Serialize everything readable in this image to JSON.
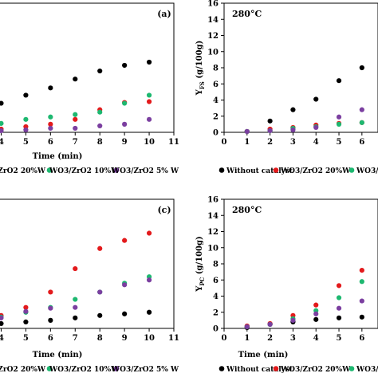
{
  "chart_data": [
    {
      "type": "scatter",
      "panel_label": "(a)",
      "title": "",
      "xlabel": "Time (min)",
      "ylabel": "",
      "xlim": [
        3.5,
        11
      ],
      "ylim": [
        0,
        16
      ],
      "xticks": [
        "4",
        "5",
        "6",
        "7",
        "8",
        "9",
        "10",
        "11"
      ],
      "grid": false,
      "legend": [
        "/ZrO2 20%W",
        "WO3/ZrO2 10%W",
        "WO3/ZrO2 5% W"
      ],
      "series": [
        {
          "color": "#000000",
          "x": [
            4,
            5,
            6,
            7,
            8,
            9,
            10
          ],
          "y": [
            3.6,
            4.6,
            5.5,
            6.6,
            7.6,
            8.3,
            8.7
          ]
        },
        {
          "color": "#e31a1c",
          "x": [
            4,
            5,
            6,
            7,
            8,
            9,
            10
          ],
          "y": [
            0.4,
            0.7,
            1.0,
            1.6,
            2.8,
            3.7,
            3.8
          ]
        },
        {
          "color": "#1db870",
          "x": [
            4,
            5,
            6,
            7,
            8,
            9,
            10
          ],
          "y": [
            1.1,
            1.6,
            1.9,
            2.2,
            2.5,
            3.6,
            4.6
          ]
        },
        {
          "color": "#7b3fa0",
          "x": [
            4,
            5,
            6,
            7,
            8,
            9,
            10
          ],
          "y": [
            0.2,
            0.3,
            0.5,
            0.5,
            0.8,
            1.0,
            1.6
          ]
        }
      ]
    },
    {
      "type": "scatter",
      "panel_label": "",
      "title": "280°C",
      "xlabel": "",
      "ylabel": "Y_FS (g/100g)",
      "xlim": [
        0,
        6.7
      ],
      "ylim": [
        0,
        16
      ],
      "xticks": [
        "0",
        "1",
        "2",
        "3",
        "4",
        "5",
        "6"
      ],
      "yticks": [
        "0",
        "2",
        "4",
        "6",
        "8",
        "10",
        "12",
        "14",
        "16"
      ],
      "grid": false,
      "legend": [
        "Without catalyst",
        "WO3/ZrO2 20%W",
        "WO3/ZrO"
      ],
      "series": [
        {
          "color": "#000000",
          "x": [
            1,
            2,
            3,
            4,
            5,
            6
          ],
          "y": [
            0.1,
            1.4,
            2.8,
            4.1,
            6.4,
            8.0
          ]
        },
        {
          "color": "#e31a1c",
          "x": [
            1,
            2,
            3,
            4,
            5,
            6
          ],
          "y": [
            0.1,
            0.4,
            0.6,
            0.9,
            1.1,
            1.2
          ]
        },
        {
          "color": "#1db870",
          "x": [
            1,
            2,
            3,
            4,
            5,
            6
          ],
          "y": [
            0.1,
            0.2,
            0.5,
            0.7,
            1.0,
            1.2
          ]
        },
        {
          "color": "#7b3fa0",
          "x": [
            1,
            2,
            3,
            4,
            5,
            6
          ],
          "y": [
            0.1,
            0.2,
            0.3,
            0.6,
            1.9,
            2.8
          ]
        }
      ]
    },
    {
      "type": "scatter",
      "panel_label": "(c)",
      "title": "",
      "xlabel": "Time (min)",
      "ylabel": "",
      "xlim": [
        3.5,
        11
      ],
      "ylim": [
        0,
        16
      ],
      "xticks": [
        "4",
        "5",
        "6",
        "7",
        "8",
        "9",
        "10",
        "11"
      ],
      "grid": false,
      "legend": [
        "/ZrO2 20%W",
        "WO3/ZrO2 10%W",
        "WO3/ZrO2 5% W"
      ],
      "series": [
        {
          "color": "#000000",
          "x": [
            4,
            5,
            6,
            7,
            8,
            9,
            10
          ],
          "y": [
            0.6,
            0.8,
            1.0,
            1.3,
            1.6,
            1.8,
            2.0
          ]
        },
        {
          "color": "#e31a1c",
          "x": [
            4,
            5,
            6,
            7,
            8,
            9,
            10
          ],
          "y": [
            1.6,
            2.6,
            4.5,
            7.4,
            9.9,
            10.9,
            11.8
          ]
        },
        {
          "color": "#1db870",
          "x": [
            4,
            5,
            6,
            7,
            8,
            9,
            10
          ],
          "y": [
            1.4,
            2.0,
            2.6,
            3.6,
            4.5,
            5.6,
            6.4
          ]
        },
        {
          "color": "#7b3fa0",
          "x": [
            4,
            5,
            6,
            7,
            8,
            9,
            10
          ],
          "y": [
            1.3,
            2.1,
            2.5,
            2.6,
            4.5,
            5.4,
            6.0
          ]
        }
      ]
    },
    {
      "type": "scatter",
      "panel_label": "",
      "title": "280°C",
      "xlabel": "Time (min)",
      "ylabel": "Y_PC (g/100g)",
      "xlim": [
        0,
        6.7
      ],
      "ylim": [
        0,
        16
      ],
      "xticks": [
        "0",
        "1",
        "2",
        "3",
        "4",
        "5",
        "6"
      ],
      "yticks": [
        "0",
        "2",
        "4",
        "6",
        "8",
        "10",
        "12",
        "14",
        "16"
      ],
      "grid": false,
      "legend": [
        "Without catalyst",
        "WO3/ZrO2 20%W",
        "WO3/ZrO"
      ],
      "series": [
        {
          "color": "#000000",
          "x": [
            1,
            2,
            3,
            4,
            5,
            6
          ],
          "y": [
            0.1,
            0.5,
            0.8,
            1.1,
            1.3,
            1.4
          ]
        },
        {
          "color": "#e31a1c",
          "x": [
            1,
            2,
            3,
            4,
            5,
            6
          ],
          "y": [
            0.3,
            0.6,
            1.6,
            2.9,
            5.3,
            7.2
          ]
        },
        {
          "color": "#1db870",
          "x": [
            1,
            2,
            3,
            4,
            5,
            6
          ],
          "y": [
            0.2,
            0.5,
            1.2,
            2.2,
            3.8,
            5.8
          ]
        },
        {
          "color": "#7b3fa0",
          "x": [
            1,
            2,
            3,
            4,
            5,
            6
          ],
          "y": [
            0.2,
            0.5,
            1.0,
            1.8,
            2.5,
            3.4
          ]
        }
      ]
    }
  ]
}
